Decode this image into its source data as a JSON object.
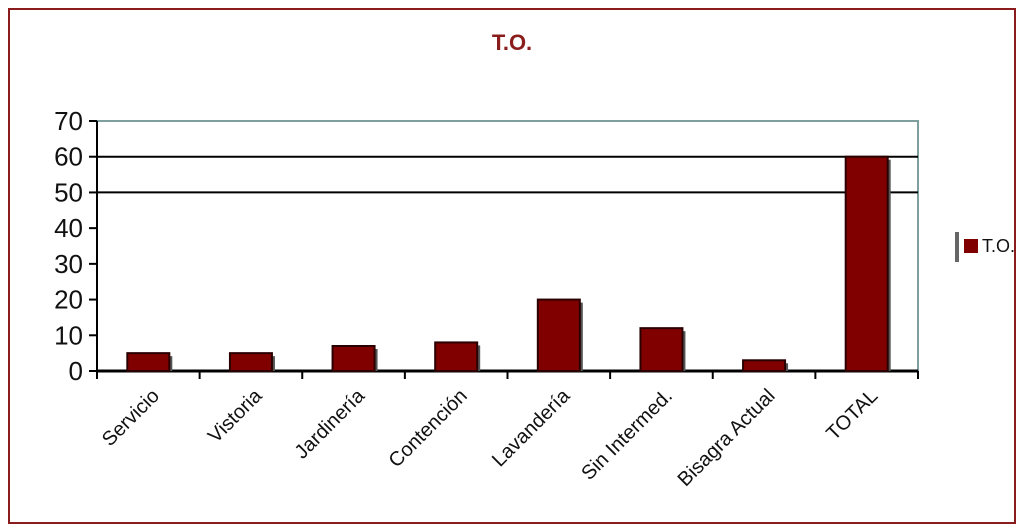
{
  "chart_data": {
    "type": "bar",
    "title": "T.O.",
    "categories": [
      "Servicio",
      "Vistoria",
      "Jardinería",
      "Contención",
      "Lavandería",
      "Sin Intermed.",
      "Bisagra Actual",
      "TOTAL"
    ],
    "series": [
      {
        "name": "T.O.",
        "values": [
          5,
          5,
          7,
          8,
          20,
          12,
          3,
          60
        ]
      }
    ],
    "y_ticks": [
      "0",
      "10",
      "20",
      "30",
      "40",
      "50",
      "60",
      "70"
    ],
    "ylim": [
      0,
      70
    ],
    "grid": true,
    "legend": "right",
    "colors": {
      "bar": "#800000",
      "frame": "#8a1c1c",
      "title": "#8a1c1c"
    }
  }
}
